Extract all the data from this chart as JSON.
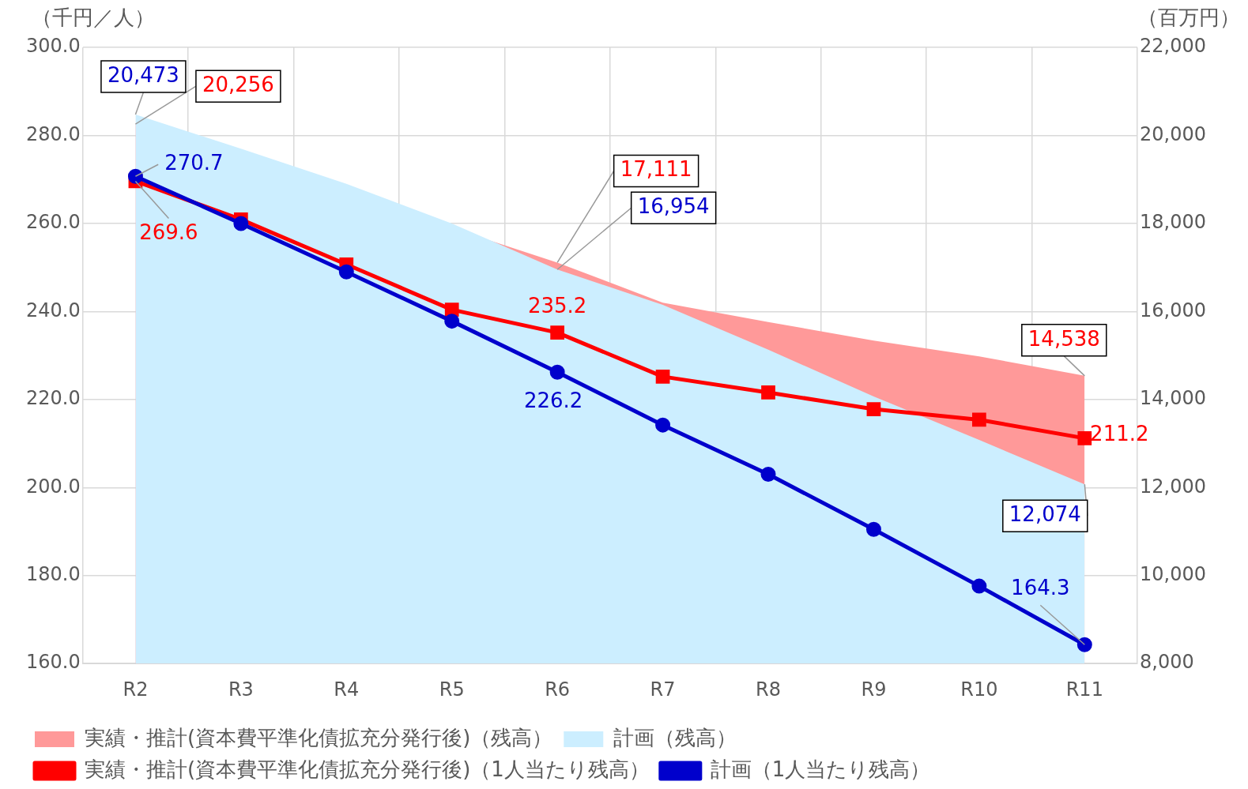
{
  "chart_data": {
    "type": "line",
    "ylabel": "（千円／人）",
    "y2label": "（百万円）",
    "categories": [
      "R2",
      "R3",
      "R4",
      "R5",
      "R6",
      "R7",
      "R8",
      "R9",
      "R10",
      "R11"
    ],
    "series": [
      {
        "type": "area",
        "axis": "y2",
        "name": "実績・推計(資本費平準化債拡充分発行後)（残高）",
        "color": "#ff9999",
        "marker": "none",
        "values": [
          20256,
          null,
          null,
          null,
          17111,
          16200,
          15760,
          15340,
          14980,
          14538
        ],
        "value_labels": [
          "20,256",
          null,
          null,
          null,
          "17,111",
          null,
          null,
          null,
          null,
          "14,538"
        ]
      },
      {
        "type": "area",
        "axis": "y2",
        "name": "計画（残高）",
        "color": "#cceeff",
        "marker": "none",
        "values": [
          20473,
          19700,
          18900,
          18000,
          16954,
          16150,
          15130,
          14070,
          13080,
          12074
        ],
        "value_labels": [
          "20,473",
          null,
          null,
          null,
          "16,954",
          null,
          null,
          null,
          null,
          "12,074"
        ]
      },
      {
        "name": "実績・推計(資本費平準化債拡充分発行後)（1人当たり残高）",
        "color": "#ff0000",
        "marker": "square",
        "values": [
          269.6,
          260.9,
          250.7,
          240.4,
          235.2,
          225.2,
          221.6,
          217.8,
          215.4,
          211.2
        ],
        "value_labels": [
          "269.6",
          null,
          null,
          null,
          "235.2",
          null,
          null,
          null,
          null,
          "211.2"
        ]
      },
      {
        "name": "計画（1人当たり残高）",
        "color": "#0000cc",
        "marker": "circle",
        "values": [
          270.7,
          260.0,
          249.0,
          237.8,
          226.2,
          214.2,
          203.0,
          190.5,
          177.6,
          164.3
        ],
        "value_labels": [
          "270.7",
          null,
          null,
          null,
          "226.2",
          null,
          null,
          null,
          null,
          "164.3"
        ]
      }
    ],
    "ylim": [
      160,
      300
    ],
    "yticks": [
      {
        "value": 160,
        "label": "160.0"
      },
      {
        "value": 180,
        "label": "180.0"
      },
      {
        "value": 200,
        "label": "200.0"
      },
      {
        "value": 220,
        "label": "220.0"
      },
      {
        "value": 240,
        "label": "240.0"
      },
      {
        "value": 260,
        "label": "260.0"
      },
      {
        "value": 280,
        "label": "280.0"
      },
      {
        "value": 300,
        "label": "300.0"
      }
    ],
    "y2lim": [
      8000,
      22000
    ],
    "y2ticks": [
      {
        "value": 8000,
        "label": "8,000"
      },
      {
        "value": 10000,
        "label": "10,000"
      },
      {
        "value": 12000,
        "label": "12,000"
      },
      {
        "value": 14000,
        "label": "14,000"
      },
      {
        "value": 16000,
        "label": "16,000"
      },
      {
        "value": 18000,
        "label": "18,000"
      },
      {
        "value": 20000,
        "label": "20,000"
      },
      {
        "value": 22000,
        "label": "22,000"
      }
    ],
    "grid": true,
    "legend": "bottom"
  }
}
